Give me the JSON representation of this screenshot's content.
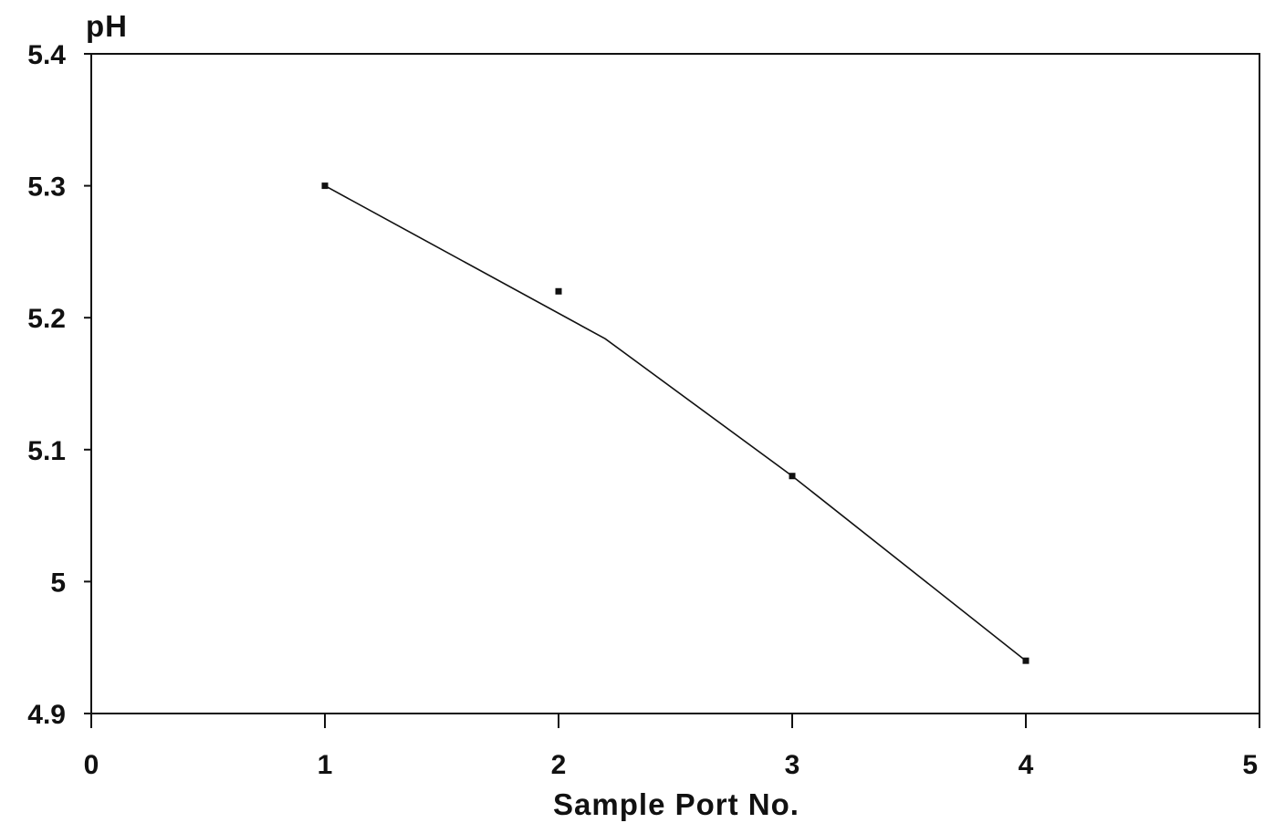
{
  "chart_data": {
    "type": "line",
    "title": "",
    "xlabel": "Sample Port No.",
    "ylabel": "pH",
    "xlim": [
      0,
      5
    ],
    "ylim": [
      4.9,
      5.4
    ],
    "x_ticks": [
      "0",
      "1",
      "2",
      "3",
      "4",
      "5"
    ],
    "y_ticks": [
      "4.9",
      "5",
      "5.1",
      "5.2",
      "5.3",
      "5.4"
    ],
    "grid": false,
    "legend": "none",
    "series": [
      {
        "points": [
          {
            "x": 1,
            "y": 5.3
          },
          {
            "x": 2,
            "y": 5.22
          },
          {
            "x": 3,
            "y": 5.08
          },
          {
            "x": 4,
            "y": 4.94
          }
        ],
        "fit_line": [
          {
            "x": 1,
            "y": 5.3
          },
          {
            "x": 2.2,
            "y": 5.184
          },
          {
            "x": 3,
            "y": 5.08
          },
          {
            "x": 4,
            "y": 4.94
          }
        ]
      }
    ],
    "line_color": "#111111",
    "marker_color": "#111111"
  }
}
